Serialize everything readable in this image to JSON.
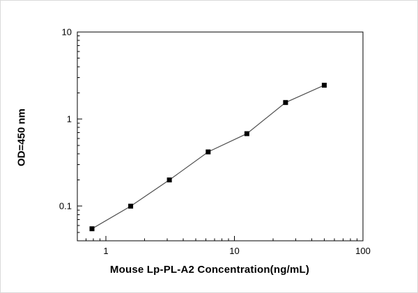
{
  "chart_data": {
    "type": "line",
    "title": "",
    "xlabel": "Mouse Lp-PL-A2 Concentration(ng/mL)",
    "ylabel": "OD=450 nm",
    "x_scale": "log",
    "y_scale": "log",
    "x": [
      0.78,
      1.56,
      3.12,
      6.25,
      12.5,
      25,
      50
    ],
    "y": [
      0.055,
      0.1,
      0.2,
      0.42,
      0.68,
      1.55,
      2.45
    ],
    "xlim": [
      0.6,
      100
    ],
    "ylim": [
      0.04,
      10
    ],
    "x_ticks": [
      1,
      10,
      100
    ],
    "y_ticks": [
      0.1,
      1,
      10
    ],
    "grid": false,
    "legend": "none",
    "marker": "square",
    "marker_color": "#000000",
    "line_color": "#4d4d4d",
    "axis_color": "#000000"
  }
}
